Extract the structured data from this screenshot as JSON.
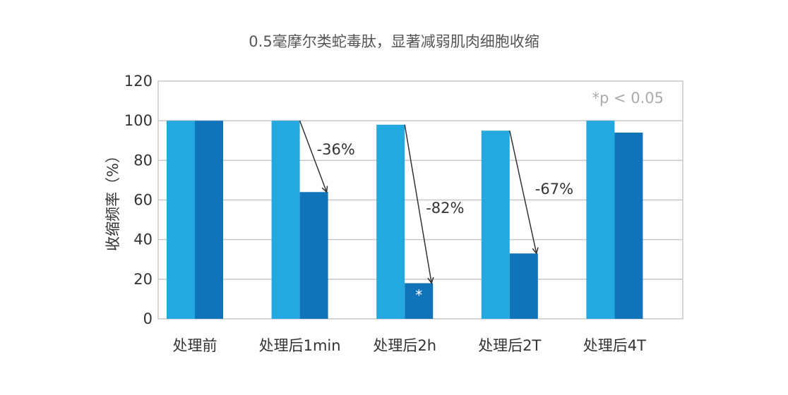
{
  "chart_data": {
    "type": "bar",
    "title": "0.5毫摩尔类蛇毒肽，显著减弱肌肉细胞收缩",
    "ylabel": "收缩频率（%）",
    "xlabel": "",
    "ylim": [
      0,
      120
    ],
    "yticks": [
      0,
      20,
      40,
      60,
      80,
      100,
      120
    ],
    "grid": true,
    "categories": [
      "处理前",
      "处理后1min",
      "处理后2h",
      "处理后2T",
      "处理后4T"
    ],
    "series": [
      {
        "values": [
          100,
          100,
          98,
          95,
          100
        ],
        "color": "#23a8e0"
      },
      {
        "values": [
          100,
          64,
          18,
          33,
          94
        ],
        "color": "#1174bb"
      }
    ],
    "annotations": [
      {
        "category_index": 1,
        "text": "-36%"
      },
      {
        "category_index": 2,
        "text": "-82%"
      },
      {
        "category_index": 3,
        "text": "-67%"
      }
    ],
    "significance_marks": [
      {
        "category_index": 2,
        "series_index": 1,
        "text": "*"
      }
    ],
    "note": "*p < 0.05"
  }
}
